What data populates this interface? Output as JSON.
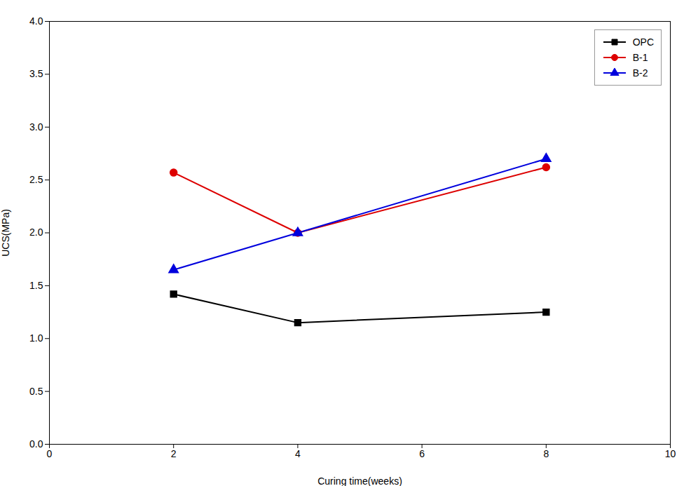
{
  "chart_data": {
    "type": "line",
    "x": [
      2,
      4,
      8
    ],
    "series": [
      {
        "name": "OPC",
        "color": "#000000",
        "marker": "square",
        "values": [
          1.42,
          1.15,
          1.25
        ]
      },
      {
        "name": "B-1",
        "color": "#dd0000",
        "marker": "circle",
        "values": [
          2.57,
          2.0,
          2.62
        ]
      },
      {
        "name": "B-2",
        "color": "#0000dd",
        "marker": "triangle",
        "values": [
          1.65,
          2.0,
          2.7
        ]
      }
    ],
    "xlabel": "Curing time(weeks)",
    "ylabel": "UCS(MPa)",
    "xlim": [
      0,
      10
    ],
    "ylim": [
      0,
      4
    ],
    "xticks": [
      0,
      2,
      4,
      6,
      8,
      10
    ],
    "yticks": [
      {
        "value": 0,
        "label": "0.0"
      },
      0.5,
      {
        "value": 1,
        "label": "1.0"
      },
      1.5,
      {
        "value": 2,
        "label": "2.0"
      },
      2.5,
      {
        "value": 3,
        "label": "3.0"
      },
      3.5,
      {
        "value": 4,
        "label": "4.0"
      }
    ],
    "legend": "upper right"
  }
}
